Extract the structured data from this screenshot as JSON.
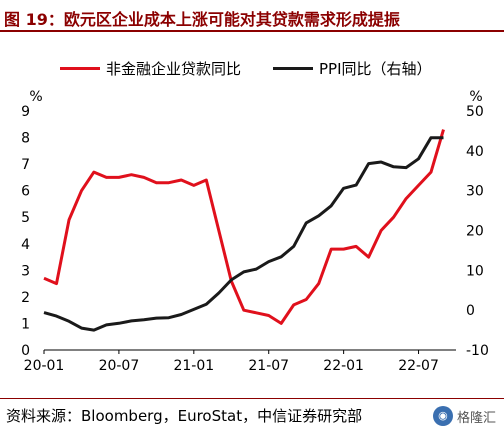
{
  "header": {
    "title": "图 19：欧元区企业成本上涨可能对其贷款需求形成提振"
  },
  "footer": {
    "source": "资料来源：Bloomberg，EuroStat，中信证券研究部",
    "watermark": "格隆汇"
  },
  "chart_data": {
    "type": "line",
    "x_ticks": [
      "20-01",
      "20-07",
      "21-01",
      "21-07",
      "22-01",
      "22-07"
    ],
    "left_axis": {
      "unit": "%",
      "ylim": [
        0,
        9
      ],
      "ticks": [
        0,
        1,
        2,
        3,
        4,
        5,
        6,
        7,
        8,
        9
      ]
    },
    "right_axis": {
      "unit": "%",
      "ylim": [
        -10,
        50
      ],
      "ticks": [
        -10,
        0,
        10,
        20,
        30,
        40,
        50
      ]
    },
    "series": [
      {
        "name": "非金融企业贷款同比",
        "axis": "left",
        "color": "#e0101c",
        "x": [
          "2020-01",
          "2020-02",
          "2020-03",
          "2020-04",
          "2020-05",
          "2020-06",
          "2020-07",
          "2020-08",
          "2020-09",
          "2020-10",
          "2020-11",
          "2020-12",
          "2021-01",
          "2021-02",
          "2021-03",
          "2021-04",
          "2021-05",
          "2021-06",
          "2021-07",
          "2021-08",
          "2021-09",
          "2021-10",
          "2021-11",
          "2021-12",
          "2022-01",
          "2022-02",
          "2022-03",
          "2022-04",
          "2022-05",
          "2022-06",
          "2022-07",
          "2022-08",
          "2022-09"
        ],
        "values": [
          2.7,
          2.5,
          4.9,
          6.0,
          6.7,
          6.5,
          6.5,
          6.6,
          6.5,
          6.3,
          6.3,
          6.4,
          6.2,
          6.4,
          4.5,
          2.6,
          1.5,
          1.4,
          1.3,
          1.0,
          1.7,
          1.9,
          2.5,
          3.8,
          3.8,
          3.9,
          3.5,
          4.5,
          5.0,
          5.7,
          6.2,
          6.7,
          8.3
        ]
      },
      {
        "name": "PPI同比（右轴）",
        "axis": "right",
        "color": "#1a1a1a",
        "x": [
          "2020-01",
          "2020-02",
          "2020-03",
          "2020-04",
          "2020-05",
          "2020-06",
          "2020-07",
          "2020-08",
          "2020-09",
          "2020-10",
          "2020-11",
          "2020-12",
          "2021-01",
          "2021-02",
          "2021-03",
          "2021-04",
          "2021-05",
          "2021-06",
          "2021-07",
          "2021-08",
          "2021-09",
          "2021-10",
          "2021-11",
          "2021-12",
          "2022-01",
          "2022-02",
          "2022-03",
          "2022-04",
          "2022-05",
          "2022-06",
          "2022-07",
          "2022-08",
          "2022-09"
        ],
        "values": [
          -0.6,
          -1.5,
          -2.8,
          -4.5,
          -5.0,
          -3.7,
          -3.3,
          -2.7,
          -2.4,
          -2.0,
          -1.9,
          -1.1,
          0.2,
          1.5,
          4.3,
          7.6,
          9.6,
          10.3,
          12.2,
          13.4,
          16.0,
          21.9,
          23.7,
          26.2,
          30.6,
          31.4,
          36.8,
          37.2,
          36.0,
          35.8,
          38.0,
          43.3,
          43.3
        ]
      }
    ]
  }
}
